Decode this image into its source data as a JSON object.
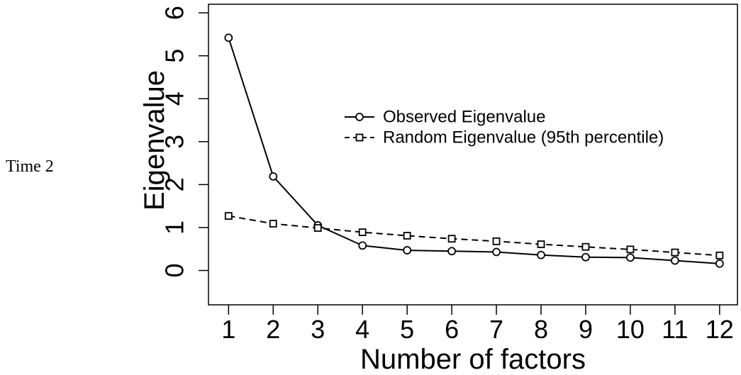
{
  "side_label": "Time 2",
  "chart_data": {
    "type": "line",
    "xlabel": "Number of factors",
    "ylabel": "Eigenvalue",
    "x": [
      1,
      2,
      3,
      4,
      5,
      6,
      7,
      8,
      9,
      10,
      11,
      12
    ],
    "xticks": [
      "1",
      "2",
      "3",
      "4",
      "5",
      "6",
      "7",
      "8",
      "9",
      "10",
      "11",
      "12"
    ],
    "yticks": [
      "0",
      "1",
      "2",
      "3",
      "4",
      "5",
      "6"
    ],
    "ylim": [
      -0.8,
      6.2
    ],
    "xlim": [
      0.55,
      12.4
    ],
    "grid": false,
    "legend_position": "center-right",
    "series": [
      {
        "name": "Observed Eigenvalue",
        "marker": "circle",
        "line_style": "solid",
        "values": [
          5.42,
          2.19,
          1.05,
          0.58,
          0.47,
          0.45,
          0.43,
          0.36,
          0.31,
          0.3,
          0.23,
          0.16
        ]
      },
      {
        "name": "Random Eigenvalue (95th percentile)",
        "marker": "square",
        "line_style": "dashed",
        "values": [
          1.27,
          1.09,
          0.99,
          0.89,
          0.81,
          0.74,
          0.68,
          0.61,
          0.55,
          0.49,
          0.42,
          0.35
        ]
      }
    ]
  }
}
